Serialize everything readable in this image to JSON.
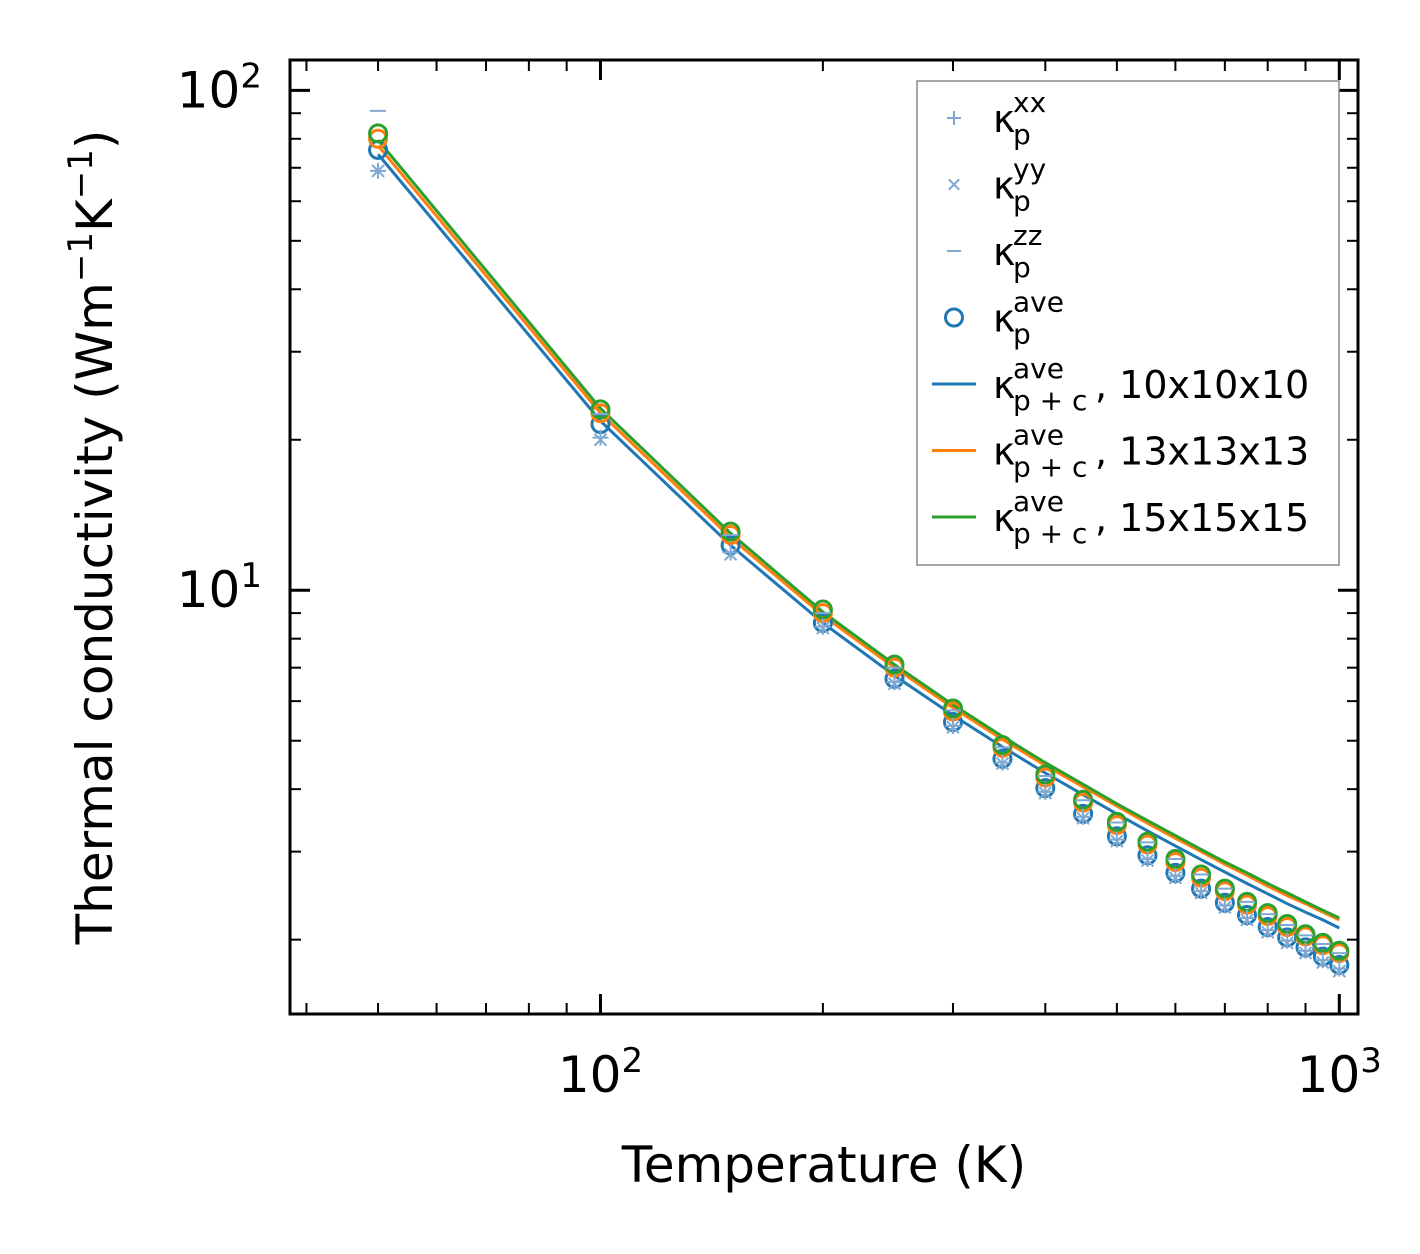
{
  "chart_data": {
    "type": "line",
    "xscale": "log",
    "yscale": "log",
    "xlabel": "Temperature (K)",
    "ylabel": {
      "base": "Thermal conductivity (Wm",
      "exp1": "−1",
      "mid": "K",
      "exp2": "−1",
      "end": ")"
    },
    "xlim": [
      38,
      1060
    ],
    "ylim": [
      1.42,
      115
    ],
    "x_ticks": [
      {
        "value": 100,
        "base": "10",
        "exp": "2"
      },
      {
        "value": 1000,
        "base": "10",
        "exp": "3"
      }
    ],
    "y_ticks": [
      {
        "value": 10,
        "base": "10",
        "exp": "1"
      },
      {
        "value": 100,
        "base": "10",
        "exp": "2"
      }
    ],
    "x": [
      50,
      100,
      150,
      200,
      250,
      300,
      350,
      400,
      450,
      500,
      550,
      600,
      650,
      700,
      750,
      800,
      850,
      900,
      950,
      1000
    ],
    "series": [
      {
        "name": "κp^xx",
        "key": "kxx",
        "kind": "marker",
        "marker": "plus",
        "color": "#7fa9d2",
        "values": [
          69.0,
          20.2,
          11.9,
          8.45,
          6.55,
          5.35,
          4.52,
          3.95,
          3.52,
          3.17,
          2.9,
          2.68,
          2.5,
          2.34,
          2.21,
          2.09,
          1.99,
          1.9,
          1.82,
          1.75
        ]
      },
      {
        "name": "κp^yy",
        "key": "kyy",
        "kind": "marker",
        "marker": "x",
        "color": "#7fa9d2",
        "values": [
          69.0,
          20.0,
          11.8,
          8.4,
          6.5,
          5.32,
          4.5,
          3.93,
          3.5,
          3.15,
          2.88,
          2.66,
          2.48,
          2.32,
          2.19,
          2.07,
          1.97,
          1.88,
          1.8,
          1.73
        ]
      },
      {
        "name": "κp^zz",
        "key": "kzz",
        "kind": "marker",
        "marker": "dash",
        "color": "#7fa9d2",
        "values": [
          91.0,
          22.5,
          12.9,
          9.0,
          7.0,
          5.75,
          4.85,
          4.25,
          3.8,
          3.43,
          3.13,
          2.9,
          2.7,
          2.53,
          2.38,
          2.25,
          2.14,
          2.04,
          1.96,
          1.88
        ]
      },
      {
        "name": "κp^ave 10x10x10",
        "key": "kave10",
        "kind": "circle",
        "color": "#1f77b4",
        "values": [
          76.0,
          21.5,
          12.3,
          8.6,
          6.65,
          5.45,
          4.6,
          4.02,
          3.57,
          3.22,
          2.95,
          2.72,
          2.53,
          2.37,
          2.24,
          2.12,
          2.02,
          1.93,
          1.85,
          1.78
        ]
      },
      {
        "name": "κp^ave 13x13x13",
        "key": "kave13",
        "kind": "circle",
        "color": "#ff7f0e",
        "values": [
          80.0,
          22.6,
          12.9,
          9.0,
          7.0,
          5.72,
          4.84,
          4.22,
          3.76,
          3.39,
          3.1,
          2.86,
          2.66,
          2.5,
          2.35,
          2.23,
          2.12,
          2.03,
          1.95,
          1.88
        ]
      },
      {
        "name": "κp^ave 15x15x15",
        "key": "kave15",
        "kind": "circle",
        "color": "#2ca02c",
        "values": [
          82.0,
          23.0,
          13.1,
          9.15,
          7.1,
          5.8,
          4.9,
          4.28,
          3.81,
          3.44,
          3.14,
          2.9,
          2.7,
          2.53,
          2.38,
          2.26,
          2.15,
          2.05,
          1.97,
          1.9
        ]
      },
      {
        "name": "κp+c^ave 10x10x10",
        "key": "line10",
        "kind": "line",
        "color": "#1f77b4",
        "values": [
          74.5,
          21.8,
          12.3,
          8.6,
          6.75,
          5.62,
          4.86,
          4.31,
          3.9,
          3.57,
          3.3,
          3.08,
          2.89,
          2.73,
          2.59,
          2.47,
          2.36,
          2.27,
          2.19,
          2.11
        ]
      },
      {
        "name": "κp+c^ave 13x13x13",
        "key": "line13",
        "kind": "line",
        "color": "#ff7f0e",
        "values": [
          77.5,
          22.6,
          12.75,
          8.9,
          7.0,
          5.82,
          5.03,
          4.46,
          4.04,
          3.7,
          3.42,
          3.19,
          3.0,
          2.83,
          2.69,
          2.56,
          2.45,
          2.36,
          2.27,
          2.19
        ]
      },
      {
        "name": "κp+c^ave 15x15x15",
        "key": "line15",
        "kind": "line",
        "color": "#2ca02c",
        "values": [
          79.5,
          23.1,
          13.0,
          9.05,
          7.1,
          5.9,
          5.1,
          4.52,
          4.09,
          3.74,
          3.46,
          3.23,
          3.03,
          2.86,
          2.72,
          2.59,
          2.48,
          2.38,
          2.29,
          2.21
        ]
      }
    ],
    "legend": {
      "position": "top-right",
      "entries": [
        {
          "symbol": "κ",
          "sub": "p",
          "sup": "xx",
          "suffix": "",
          "marker": "plus",
          "color": "#7fa9d2"
        },
        {
          "symbol": "κ",
          "sub": "p",
          "sup": "yy",
          "suffix": "",
          "marker": "x",
          "color": "#7fa9d2"
        },
        {
          "symbol": "κ",
          "sub": "p",
          "sup": "zz",
          "suffix": "",
          "marker": "dash",
          "color": "#7fa9d2"
        },
        {
          "symbol": "κ",
          "sub": "p",
          "sup": "ave",
          "suffix": "",
          "marker": "circle",
          "color": "#1f77b4"
        },
        {
          "symbol": "κ",
          "sub": "p + c",
          "sup": "ave",
          "suffix": ", 10x10x10",
          "marker": "line",
          "color": "#1f77b4"
        },
        {
          "symbol": "κ",
          "sub": "p + c",
          "sup": "ave",
          "suffix": ", 13x13x13",
          "marker": "line",
          "color": "#ff7f0e"
        },
        {
          "symbol": "κ",
          "sub": "p + c",
          "sup": "ave",
          "suffix": ", 15x15x15",
          "marker": "line",
          "color": "#2ca02c"
        }
      ]
    }
  }
}
